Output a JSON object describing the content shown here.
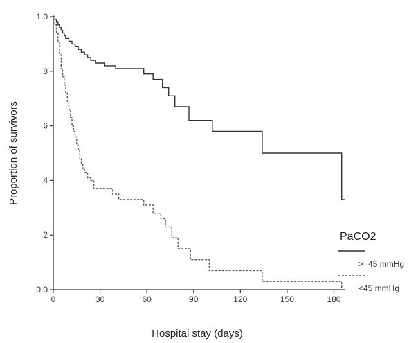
{
  "chart_data": {
    "type": "line",
    "step": true,
    "xlabel": "Hospital stay (days)",
    "ylabel": "Proportion of survivors",
    "xlim": [
      0,
      186
    ],
    "ylim": [
      0,
      1.0
    ],
    "x_ticks": [
      {
        "value": 0,
        "label": "0"
      },
      {
        "value": 30,
        "label": "30"
      },
      {
        "value": 60,
        "label": "60"
      },
      {
        "value": 90,
        "label": "90"
      },
      {
        "value": 120,
        "label": "120"
      },
      {
        "value": 150,
        "label": "150"
      },
      {
        "value": 180,
        "label": "180"
      }
    ],
    "y_ticks": [
      {
        "value": 0.0,
        "label": "0.0"
      },
      {
        "value": 0.2,
        "label": ".2"
      },
      {
        "value": 0.4,
        "label": ".4"
      },
      {
        "value": 0.6,
        "label": ".6"
      },
      {
        "value": 0.8,
        "label": ".8"
      },
      {
        "value": 1.0,
        "label": "1.0"
      }
    ],
    "legend": {
      "title": "PaCO2",
      "position": "bottom-right"
    },
    "series": [
      {
        "name": ">=45 mmHg",
        "color": "#333333",
        "dash": "solid",
        "x": [
          0,
          1,
          2,
          3,
          4,
          5,
          6,
          7,
          8,
          10,
          12,
          14,
          16,
          18,
          20,
          22,
          24,
          27,
          33,
          40,
          58,
          64,
          70,
          74,
          78,
          87,
          102,
          134,
          185,
          187
        ],
        "y": [
          1.0,
          0.99,
          0.98,
          0.97,
          0.96,
          0.95,
          0.94,
          0.93,
          0.92,
          0.91,
          0.9,
          0.89,
          0.88,
          0.87,
          0.86,
          0.85,
          0.84,
          0.83,
          0.82,
          0.81,
          0.79,
          0.77,
          0.74,
          0.71,
          0.67,
          0.62,
          0.58,
          0.5,
          0.33,
          0.33
        ]
      },
      {
        "name": "<45 mmHg",
        "color": "#555555",
        "dash": "dashed",
        "x": [
          0,
          1,
          2,
          3,
          4,
          5,
          6,
          7,
          8,
          9,
          10,
          11,
          12,
          13,
          14,
          15,
          16,
          17,
          18,
          19,
          20,
          22,
          24,
          26,
          38,
          42,
          58,
          64,
          69,
          72,
          76,
          80,
          88,
          100,
          134,
          185
        ],
        "y": [
          1.0,
          0.97,
          0.94,
          0.91,
          0.86,
          0.81,
          0.78,
          0.75,
          0.72,
          0.69,
          0.66,
          0.63,
          0.6,
          0.58,
          0.56,
          0.53,
          0.51,
          0.48,
          0.46,
          0.44,
          0.43,
          0.41,
          0.4,
          0.37,
          0.35,
          0.33,
          0.31,
          0.28,
          0.26,
          0.23,
          0.19,
          0.15,
          0.11,
          0.07,
          0.03,
          0.0
        ]
      }
    ]
  }
}
